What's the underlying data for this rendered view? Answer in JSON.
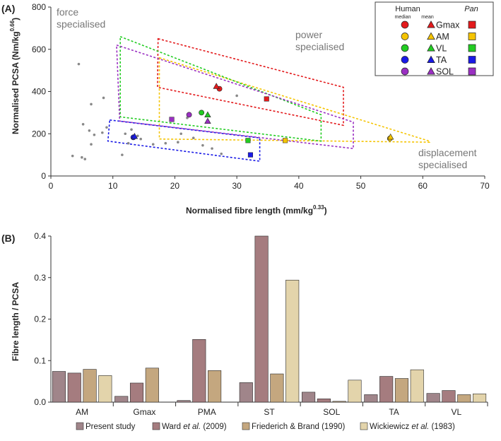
{
  "chart_data": [
    {
      "panel_label": "(A)",
      "type": "scatter",
      "xlabel": "Normalised fibre length (mm/kg",
      "xlabel_sup": "0.33",
      "xlabel_end": ")",
      "ylabel": "Normalised PCSA (Nm/kg",
      "ylabel_sup": "0.66",
      "ylabel_end": ")",
      "xlim": [
        0,
        70
      ],
      "ylim": [
        0,
        800
      ],
      "xticks": [
        0,
        10,
        20,
        30,
        40,
        50,
        60,
        70
      ],
      "yticks": [
        0,
        200,
        400,
        600,
        800
      ],
      "annotations": {
        "force": [
          "force",
          "specialised"
        ],
        "power": [
          "power",
          "specialised"
        ],
        "displacement": [
          "displacement",
          "specialised"
        ]
      },
      "legend": {
        "human_title": "Human",
        "median_label": "median",
        "mean_label": "mean",
        "pan_title": "Pan",
        "entries": [
          {
            "label": "Gmax",
            "color": "#e31a1c"
          },
          {
            "label": "AM",
            "color": "#f5c400"
          },
          {
            "label": "VL",
            "color": "#22cc22"
          },
          {
            "label": "TA",
            "color": "#1a1ae6"
          },
          {
            "label": "SOL",
            "color": "#9a2fc2"
          }
        ]
      },
      "background_points": [
        [
          3.5,
          95
        ],
        [
          4.5,
          530
        ],
        [
          5,
          88
        ],
        [
          5.5,
          80
        ],
        [
          5.2,
          245
        ],
        [
          6.2,
          215
        ],
        [
          6.5,
          150
        ],
        [
          6.5,
          340
        ],
        [
          7,
          195
        ],
        [
          8.5,
          370
        ],
        [
          8.3,
          205
        ],
        [
          9,
          230
        ],
        [
          11.5,
          100
        ],
        [
          12,
          200
        ],
        [
          12.5,
          155
        ],
        [
          13,
          220
        ],
        [
          14,
          190
        ],
        [
          14.5,
          175
        ],
        [
          16.5,
          150
        ],
        [
          18.5,
          155
        ],
        [
          20.5,
          160
        ],
        [
          21,
          200
        ],
        [
          22,
          275
        ],
        [
          23,
          180
        ],
        [
          24.5,
          145
        ],
        [
          26,
          130
        ],
        [
          27.5,
          105
        ],
        [
          30,
          380
        ]
      ],
      "series": [
        {
          "name": "Gmax",
          "color": "#e31a1c",
          "median": [
            27.2,
            413
          ],
          "mean": [
            26.7,
            425
          ],
          "pan": [
            34.8,
            365
          ],
          "region": [
            [
              17.3,
              650
            ],
            [
              47.2,
              420
            ],
            [
              47.2,
              240
            ],
            [
              17.2,
              420
            ]
          ]
        },
        {
          "name": "AM",
          "color": "#f5c400",
          "median": [
            54.7,
            178
          ],
          "mean": [
            54.8,
            185
          ],
          "pan": [
            37.8,
            168
          ],
          "region": [
            [
              17.5,
              560
            ],
            [
              61.1,
              165
            ],
            [
              61.1,
              160
            ],
            [
              17.5,
              175
            ]
          ]
        },
        {
          "name": "VL",
          "color": "#22cc22",
          "median": [
            24.3,
            300
          ],
          "mean": [
            25.3,
            290
          ],
          "pan": [
            31.8,
            168
          ],
          "region": [
            [
              11.2,
              660
            ],
            [
              43.6,
              290
            ],
            [
              43.6,
              165
            ],
            [
              11.2,
              280
            ]
          ]
        },
        {
          "name": "TA",
          "color": "#1a1ae6",
          "median": [
            13.3,
            183
          ],
          "mean": [
            13.5,
            188
          ],
          "pan": [
            32.2,
            100
          ],
          "region": [
            [
              9.5,
              265
            ],
            [
              33.7,
              180
            ],
            [
              33.7,
              70
            ],
            [
              9.2,
              165
            ]
          ]
        },
        {
          "name": "SOL",
          "color": "#9a2fc2",
          "median": [
            22.3,
            290
          ],
          "mean": [
            25.3,
            260
          ],
          "pan": [
            19.5,
            268
          ],
          "region": [
            [
              10.6,
              620
            ],
            [
              48.8,
              255
            ],
            [
              48.8,
              130
            ],
            [
              11.1,
              260
            ]
          ]
        }
      ]
    },
    {
      "panel_label": "(B)",
      "type": "bar",
      "ylabel": "Fibre length / PCSA",
      "ylim": [
        0,
        0.4
      ],
      "yticks": [
        0,
        0.1,
        0.2,
        0.3,
        0.4
      ],
      "ytick_labels": [
        "0.0",
        "0.1",
        "0.2",
        "0.3",
        "0.4"
      ],
      "categories": [
        "AM",
        "Gmax",
        "PMA",
        "ST",
        "SOL",
        "TA",
        "VL"
      ],
      "series": [
        {
          "name": "Present study",
          "color": "#a0858a",
          "values": [
            0.074,
            0.014,
            0.004,
            0.047,
            0.024,
            0.018,
            0.021
          ]
        },
        {
          "name": "Ward et al. (2009)",
          "color": "#a57c7f",
          "values": [
            0.07,
            0.046,
            0.151,
            0.4,
            0.008,
            0.062,
            0.028
          ]
        },
        {
          "name": "Friederich & Brand (1990)",
          "color": "#c4a77f",
          "values": [
            0.079,
            0.082,
            0.076,
            0.068,
            0.002,
            0.057,
            0.018
          ]
        },
        {
          "name": "Wickiewicz et al. (1983)",
          "color": "#e3d4ab",
          "values": [
            0.064,
            0.0,
            0.0,
            0.294,
            0.053,
            0.078,
            0.02
          ]
        }
      ],
      "legend_entries": [
        {
          "pre": "Present study",
          "italic": "",
          "post": ""
        },
        {
          "pre": "Ward ",
          "italic": "et al.",
          "post": " (2009)"
        },
        {
          "pre": "Friederich & Brand (1990)",
          "italic": "",
          "post": ""
        },
        {
          "pre": "Wickiewicz ",
          "italic": "et al.",
          "post": " (1983)"
        }
      ]
    }
  ]
}
